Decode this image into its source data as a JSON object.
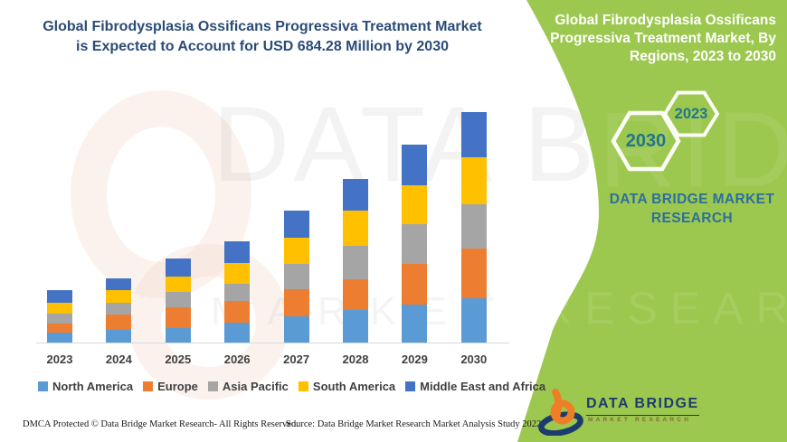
{
  "titles": {
    "headline_line1": "Global Fibrodysplasia Ossificans Progressiva Treatment Market",
    "headline_line2": "is Expected to Account for USD 684.28 Million by 2030",
    "side_title_lines": [
      "Global Fibrodysplasia Ossificans",
      "Progressiva Treatment Market, By",
      "Regions, 2023 to 2030"
    ]
  },
  "hexagons": {
    "back_year": "2030",
    "front_year": "2023"
  },
  "brand_on_green": {
    "line1": "DATA BRIDGE MARKET",
    "line2": "RESEARCH"
  },
  "logo": {
    "title": "DATA BRIDGE",
    "subtitle": "MARKET RESEARCH"
  },
  "footer": {
    "dmca": "DMCA Protected © Data Bridge Market Research- All Rights Reserved.",
    "source": "Source: Data Bridge Market Research Market Analysis Study 2022"
  },
  "watermark": {
    "big_left": "DATA B",
    "big_right": "RIDGE",
    "row_left": "MARKET",
    "row_right": "RESEARCH"
  },
  "colors": {
    "green": "#9CC84F",
    "headline": "#2B4B77",
    "hex_year": "#21758F",
    "brand_blue": "#2D6F9D",
    "axis_text": "#404040",
    "logo_navy": "#1D3C6E",
    "logo_orange": "#F07E26"
  },
  "chart_data": {
    "type": "bar",
    "stacked": true,
    "unit": "USD Million",
    "title": "Global Fibrodysplasia Ossificans Progressiva Treatment Market, By Regions, 2023 to 2030",
    "annotation": "Expected to account for USD 684.28 Million by 2030",
    "categories": [
      "2023",
      "2024",
      "2025",
      "2026",
      "2027",
      "2028",
      "2029",
      "2030"
    ],
    "series": [
      {
        "name": "North America",
        "color": "#5B9BD5",
        "values": [
          30,
          39,
          43,
          59,
          78,
          96,
          113,
          132.5
        ]
      },
      {
        "name": "Europe",
        "color": "#ED7D31",
        "values": [
          27,
          45,
          63,
          65,
          81,
          93,
          122,
          146.9
        ]
      },
      {
        "name": "Asia Pacific",
        "color": "#A5A5A5",
        "values": [
          30,
          33,
          45,
          52,
          76,
          99,
          117,
          132.5
        ]
      },
      {
        "name": "South America",
        "color": "#FFC000",
        "values": [
          32,
          39,
          45,
          61,
          76,
          104,
          117,
          138.0
        ]
      },
      {
        "name": "Middle East and Africa",
        "color": "#4472C4",
        "values": [
          36,
          36,
          53,
          63,
          81,
          95,
          119,
          134.38
        ]
      }
    ],
    "totals": [
      155,
      192,
      249,
      300,
      392,
      487,
      588,
      684.28
    ],
    "ylim": [
      0,
      700
    ],
    "y_axis_visible": false,
    "gridlines": false,
    "legend_position": "bottom"
  }
}
